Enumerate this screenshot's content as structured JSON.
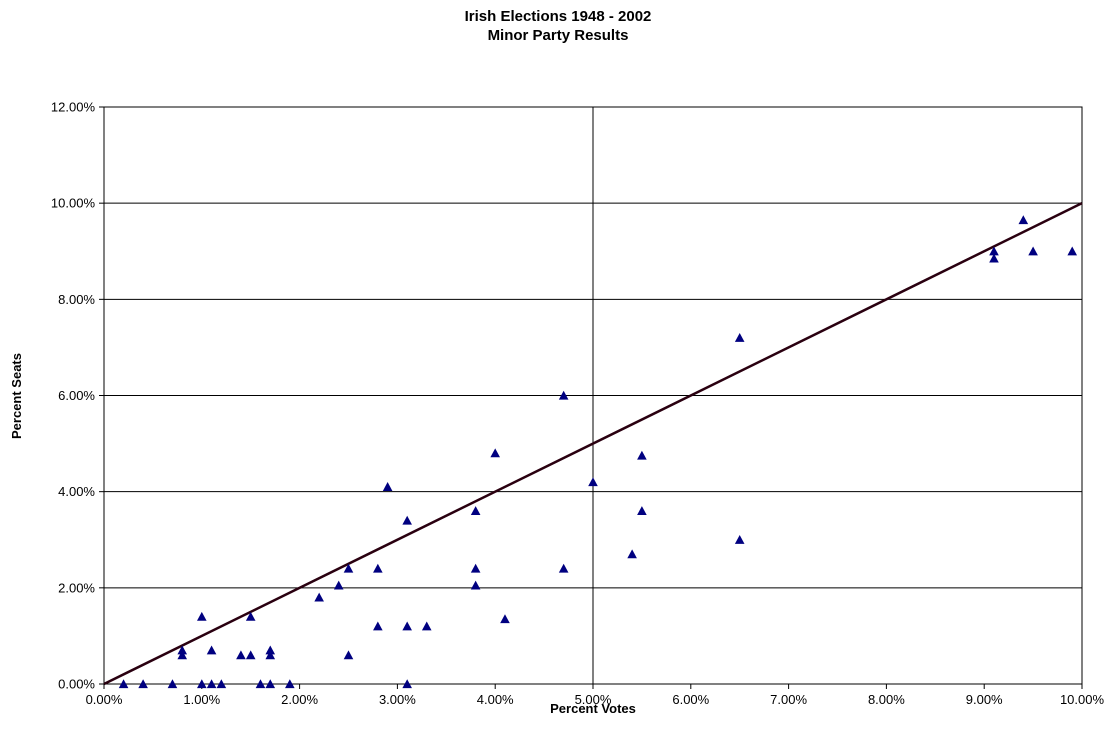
{
  "chart_data": {
    "type": "scatter",
    "title": "Irish Elections 1948 - 2002",
    "subtitle": "Minor Party Results",
    "xlabel": "Percent Votes",
    "ylabel": "Percent Seats",
    "xlim": [
      0,
      10
    ],
    "ylim": [
      0,
      12
    ],
    "x_ticks": [
      "0.00%",
      "1.00%",
      "2.00%",
      "3.00%",
      "4.00%",
      "5.00%",
      "6.00%",
      "7.00%",
      "8.00%",
      "9.00%",
      "10.00%"
    ],
    "y_ticks": [
      "0.00%",
      "2.00%",
      "4.00%",
      "6.00%",
      "8.00%",
      "10.00%",
      "12.00%"
    ],
    "grid": "horizontal",
    "marker": "triangle",
    "marker_color": "#000080",
    "line_color": "#2a0010",
    "reference_lines": [
      {
        "type": "vertical",
        "x": 5
      },
      {
        "type": "diagonal",
        "from": [
          0,
          0
        ],
        "to": [
          10,
          10
        ]
      }
    ],
    "points": [
      [
        0.2,
        0.0
      ],
      [
        0.4,
        0.0
      ],
      [
        0.7,
        0.0
      ],
      [
        0.8,
        0.6
      ],
      [
        0.8,
        0.7
      ],
      [
        1.0,
        1.4
      ],
      [
        1.0,
        0.0
      ],
      [
        1.1,
        0.7
      ],
      [
        1.1,
        0.0
      ],
      [
        1.2,
        0.0
      ],
      [
        1.4,
        0.6
      ],
      [
        1.5,
        0.6
      ],
      [
        1.5,
        1.4
      ],
      [
        1.6,
        0.0
      ],
      [
        1.7,
        0.6
      ],
      [
        1.7,
        0.7
      ],
      [
        1.7,
        0.0
      ],
      [
        1.9,
        0.0
      ],
      [
        2.2,
        1.8
      ],
      [
        2.4,
        2.05
      ],
      [
        2.5,
        2.4
      ],
      [
        2.5,
        0.6
      ],
      [
        2.8,
        2.4
      ],
      [
        2.8,
        1.2
      ],
      [
        2.9,
        4.1
      ],
      [
        3.1,
        3.4
      ],
      [
        3.1,
        1.2
      ],
      [
        3.1,
        0.0
      ],
      [
        3.3,
        1.2
      ],
      [
        3.8,
        3.6
      ],
      [
        3.8,
        2.4
      ],
      [
        3.8,
        2.05
      ],
      [
        4.0,
        4.8
      ],
      [
        4.1,
        1.35
      ],
      [
        4.7,
        6.0
      ],
      [
        4.7,
        2.4
      ],
      [
        5.0,
        4.2
      ],
      [
        5.4,
        2.7
      ],
      [
        5.5,
        4.75
      ],
      [
        5.5,
        3.6
      ],
      [
        6.5,
        7.2
      ],
      [
        6.5,
        3.0
      ],
      [
        9.1,
        9.0
      ],
      [
        9.1,
        8.85
      ],
      [
        9.4,
        9.65
      ],
      [
        9.5,
        9.0
      ],
      [
        9.9,
        9.0
      ]
    ]
  }
}
